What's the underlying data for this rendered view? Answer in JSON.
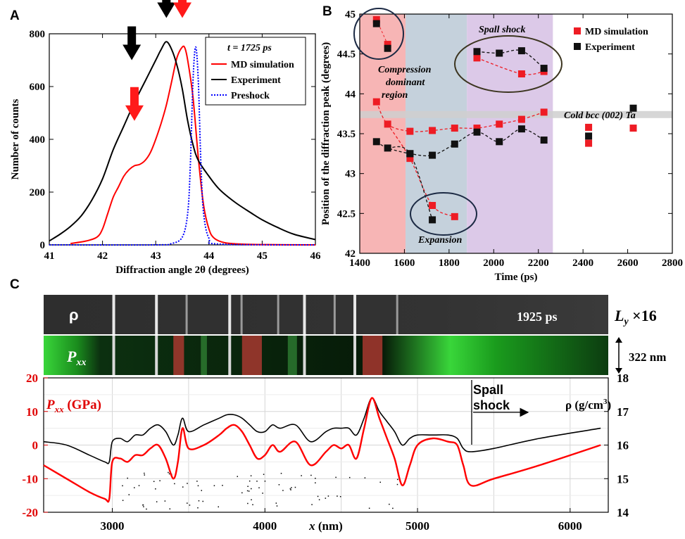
{
  "panels": {
    "a": "A",
    "b": "B",
    "c": "C"
  },
  "chart_data": [
    {
      "type": "line",
      "panel": "A",
      "xlabel": "Diffraction angle 2θ (degrees)",
      "ylabel": "Number of counts",
      "xlim": [
        41,
        46
      ],
      "ylim": [
        0,
        800
      ],
      "xticks": [
        41,
        42,
        43,
        44,
        45,
        46
      ],
      "yticks": [
        0,
        200,
        400,
        600,
        800
      ],
      "legend_title": "t = 1725 ps",
      "legend_position": "top-right",
      "series": [
        {
          "name": "MD simulation",
          "color": "#ff0000",
          "style": "solid",
          "x": [
            41.4,
            41.7,
            41.9,
            42.0,
            42.1,
            42.2,
            42.3,
            42.4,
            42.5,
            42.6,
            42.7,
            42.8,
            42.9,
            43.0,
            43.1,
            43.2,
            43.3,
            43.4,
            43.5,
            43.55,
            43.6,
            43.7,
            43.8,
            43.9,
            44.0,
            44.1,
            44.3,
            44.6,
            45.0,
            46.0
          ],
          "y": [
            5,
            15,
            30,
            60,
            120,
            180,
            220,
            260,
            285,
            300,
            305,
            320,
            350,
            400,
            460,
            530,
            620,
            710,
            750,
            745,
            700,
            560,
            330,
            150,
            60,
            25,
            8,
            3,
            1,
            0
          ]
        },
        {
          "name": "Experiment",
          "color": "#000000",
          "style": "solid",
          "x": [
            41.0,
            41.2,
            41.4,
            41.6,
            41.8,
            42.0,
            42.2,
            42.4,
            42.6,
            42.8,
            43.0,
            43.1,
            43.2,
            43.3,
            43.4,
            43.5,
            43.6,
            43.7,
            43.8,
            44.0,
            44.2,
            44.5,
            44.8,
            45.0,
            45.3,
            45.6,
            46.0
          ],
          "y": [
            15,
            40,
            70,
            110,
            170,
            250,
            360,
            450,
            540,
            620,
            700,
            740,
            770,
            740,
            680,
            590,
            470,
            380,
            320,
            260,
            210,
            160,
            120,
            95,
            65,
            40,
            20
          ]
        },
        {
          "name": "Preshock",
          "color": "#0000ff",
          "style": "dotted",
          "x": [
            41.0,
            43.0,
            43.3,
            43.5,
            43.6,
            43.65,
            43.7,
            43.75,
            43.8,
            43.85,
            43.9,
            44.0,
            44.2,
            46.0
          ],
          "y": [
            0,
            0,
            5,
            30,
            120,
            300,
            620,
            750,
            620,
            300,
            120,
            25,
            3,
            0
          ]
        }
      ],
      "arrows": [
        {
          "color": "black",
          "x": 42.55,
          "y": 700
        },
        {
          "color": "black",
          "x": 43.2,
          "y": 860
        },
        {
          "color": "red",
          "x": 43.5,
          "y": 860
        },
        {
          "color": "red",
          "x": 42.6,
          "y": 470
        }
      ]
    },
    {
      "type": "scatter",
      "panel": "B",
      "xlabel": "Time (ps)",
      "ylabel": "Position of the diffraction peak (degrees)",
      "xlim": [
        1400,
        2800
      ],
      "ylim": [
        42,
        45
      ],
      "xticks": [
        1400,
        1600,
        1800,
        2000,
        2200,
        2400,
        2600,
        2800
      ],
      "yticks": [
        42,
        42.5,
        43,
        43.5,
        44,
        44.5,
        45
      ],
      "legend_position": "top-right",
      "reference_line": {
        "y": 43.74,
        "label": "Cold bcc (002) Ta"
      },
      "regions": [
        {
          "x": [
            1400,
            1605
          ],
          "color": "#f7b5b5",
          "label": "Compression dominant region"
        },
        {
          "x": [
            1605,
            1880
          ],
          "color": "#c5d1dc",
          "label": "Expansion"
        },
        {
          "x": [
            1880,
            2265
          ],
          "color": "#dcc9e8",
          "label": "Spall shock"
        }
      ],
      "series": [
        {
          "name": "MD simulation",
          "color": "#ee1c24",
          "x": [
            1475,
            1525,
            1475,
            1525,
            1625,
            1725,
            1825,
            1925,
            2025,
            2125,
            2225,
            1625,
            1725,
            1825,
            1925,
            2125,
            2225,
            2425,
            2425,
            2625
          ],
          "y": [
            44.93,
            44.62,
            43.9,
            43.62,
            43.53,
            43.54,
            43.57,
            43.57,
            43.62,
            43.68,
            43.77,
            43.19,
            42.6,
            42.46,
            44.45,
            44.25,
            44.28,
            43.58,
            43.38,
            43.57
          ]
        },
        {
          "name": "Experiment",
          "color": "#111111",
          "x": [
            1475,
            1525,
            1475,
            1525,
            1625,
            1725,
            1825,
            1925,
            2025,
            2125,
            2225,
            1625,
            1725,
            1925,
            2025,
            2125,
            2225,
            2425,
            2625
          ],
          "y": [
            44.88,
            44.57,
            43.4,
            43.32,
            43.25,
            43.23,
            43.37,
            43.52,
            43.4,
            43.56,
            43.42,
            43.25,
            42.42,
            44.53,
            44.51,
            44.54,
            44.32,
            43.47,
            43.82
          ]
        }
      ]
    },
    {
      "type": "line",
      "panel": "C",
      "time_label": "1925 ps",
      "strip_labels": [
        "ρ",
        "Pxx"
      ],
      "ly_label": "Ly ×16",
      "height_label": "322 nm",
      "xlabel": "x (nm)",
      "ylabel_left": "Pxx (GPa)",
      "ylabel_right": "ρ (g/cm3)",
      "annotation": "Spall shock",
      "xlim": [
        2550,
        6250
      ],
      "xticks": [
        3000,
        4000,
        5000,
        6000
      ],
      "ylim_left": [
        -20,
        20
      ],
      "yticks_left": [
        -20,
        -10,
        0,
        10,
        20
      ],
      "ylim_right": [
        14,
        18
      ],
      "yticks_right": [
        14,
        15,
        16,
        17,
        18
      ],
      "series": [
        {
          "name": "Pxx",
          "color": "#ff0000",
          "axis": "left",
          "x": [
            2550,
            2700,
            2850,
            2950,
            2980,
            3000,
            3050,
            3100,
            3150,
            3200,
            3250,
            3300,
            3350,
            3400,
            3430,
            3460,
            3500,
            3600,
            3700,
            3750,
            3800,
            3850,
            3900,
            3950,
            4000,
            4050,
            4100,
            4200,
            4300,
            4400,
            4450,
            4500,
            4550,
            4600,
            4650,
            4700,
            4750,
            4800,
            4850,
            4900,
            4950,
            5000,
            5100,
            5200,
            5260,
            5300,
            5350,
            5500,
            5800,
            6200
          ],
          "y": [
            -6,
            -10,
            -14,
            -16,
            -16,
            -5,
            -4,
            -5,
            -3,
            -3,
            -1,
            0,
            -4,
            -10,
            -5,
            5,
            -1,
            0,
            3,
            5,
            6,
            4,
            0,
            -4,
            -3,
            0,
            -2,
            1,
            -6,
            -2,
            0,
            -1,
            0,
            -4,
            5,
            14,
            8,
            2,
            -4,
            -12,
            -6,
            0,
            2,
            1,
            0,
            -6,
            -12,
            -10,
            -6,
            0
          ]
        },
        {
          "name": "ρ",
          "color": "#000000",
          "axis": "right",
          "x": [
            2550,
            2700,
            2850,
            2950,
            2980,
            3000,
            3050,
            3100,
            3150,
            3200,
            3250,
            3300,
            3350,
            3400,
            3430,
            3460,
            3500,
            3600,
            3700,
            3750,
            3800,
            3850,
            3900,
            3950,
            4000,
            4050,
            4100,
            4200,
            4300,
            4400,
            4450,
            4500,
            4550,
            4600,
            4650,
            4700,
            4750,
            4800,
            4850,
            4900,
            4950,
            5000,
            5100,
            5200,
            5260,
            5300,
            5350,
            5500,
            5800,
            6200
          ],
          "y": [
            16.1,
            16.0,
            15.7,
            15.5,
            15.5,
            16.1,
            16.2,
            16.1,
            16.3,
            16.3,
            16.5,
            16.6,
            16.4,
            16.0,
            16.3,
            16.8,
            16.4,
            16.6,
            16.8,
            16.9,
            16.9,
            16.8,
            16.6,
            16.4,
            16.4,
            16.6,
            16.5,
            16.6,
            16.1,
            16.4,
            16.5,
            16.5,
            16.5,
            16.3,
            16.8,
            17.4,
            17.0,
            16.7,
            16.4,
            16.0,
            16.2,
            16.3,
            16.3,
            16.3,
            16.2,
            15.9,
            15.8,
            15.9,
            16.2,
            16.5
          ]
        }
      ]
    }
  ]
}
